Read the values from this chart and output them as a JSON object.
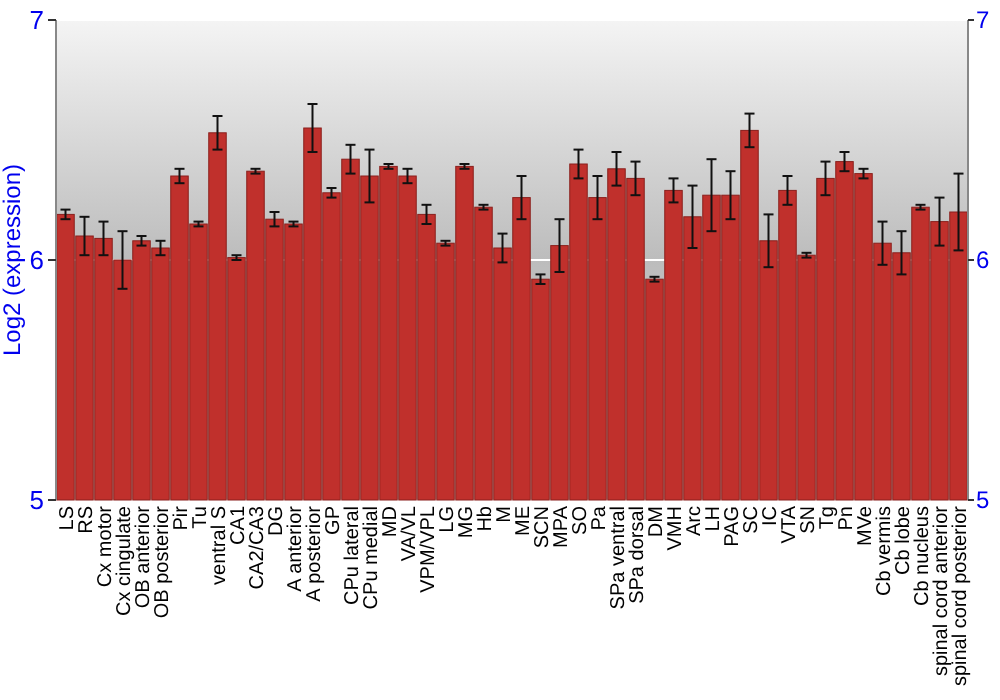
{
  "chart_data": {
    "type": "bar",
    "ylabel": "Log2 (expression)",
    "categories": [
      "LS",
      "RS",
      "Cx motor",
      "Cx cingulate",
      "OB anterior",
      "OB posterior",
      "Pir",
      "Tu",
      "ventral S",
      "CA1",
      "CA2/CA3",
      "DG",
      "A anterior",
      "A posterior",
      "GP",
      "CPu lateral",
      "CPu medial",
      "MD",
      "VA/VL",
      "VPM/VPL",
      "LG",
      "MG",
      "Hb",
      "M",
      "ME",
      "SCN",
      "MPA",
      "SO",
      "Pa",
      "SPa ventral",
      "SPa dorsal",
      "DM",
      "VMH",
      "Arc",
      "LH",
      "PAG",
      "SC",
      "IC",
      "VTA",
      "SN",
      "Tg",
      "Pn",
      "MVe",
      "Cb vermis",
      "Cb lobe",
      "Cb nucleus",
      "spinal cord anterior",
      "spinal cord posterior"
    ],
    "values": [
      6.19,
      6.1,
      6.09,
      6.0,
      6.08,
      6.05,
      6.35,
      6.15,
      6.53,
      6.01,
      6.37,
      6.17,
      6.15,
      6.55,
      6.28,
      6.42,
      6.35,
      6.39,
      6.35,
      6.19,
      6.07,
      6.39,
      6.22,
      6.05,
      6.26,
      5.92,
      6.06,
      6.4,
      6.26,
      6.38,
      6.34,
      5.92,
      6.29,
      6.18,
      6.27,
      6.27,
      6.54,
      6.08,
      6.29,
      6.02,
      6.34,
      6.41,
      6.36,
      6.07,
      6.03,
      6.22,
      6.16,
      6.2
    ],
    "errors": [
      0.02,
      0.08,
      0.07,
      0.12,
      0.02,
      0.03,
      0.03,
      0.01,
      0.07,
      0.01,
      0.01,
      0.03,
      0.01,
      0.1,
      0.02,
      0.06,
      0.11,
      0.01,
      0.03,
      0.04,
      0.01,
      0.01,
      0.01,
      0.06,
      0.09,
      0.02,
      0.11,
      0.06,
      0.09,
      0.07,
      0.07,
      0.01,
      0.05,
      0.13,
      0.15,
      0.1,
      0.07,
      0.11,
      0.06,
      0.01,
      0.07,
      0.04,
      0.02,
      0.09,
      0.09,
      0.01,
      0.1,
      0.16
    ],
    "color": "#c0302c",
    "ylim": [
      5,
      7
    ],
    "yticks": [
      5,
      6,
      7
    ],
    "y2lim": [
      5,
      7
    ],
    "y2ticks": [
      5,
      6,
      7
    ],
    "grid": "y"
  }
}
